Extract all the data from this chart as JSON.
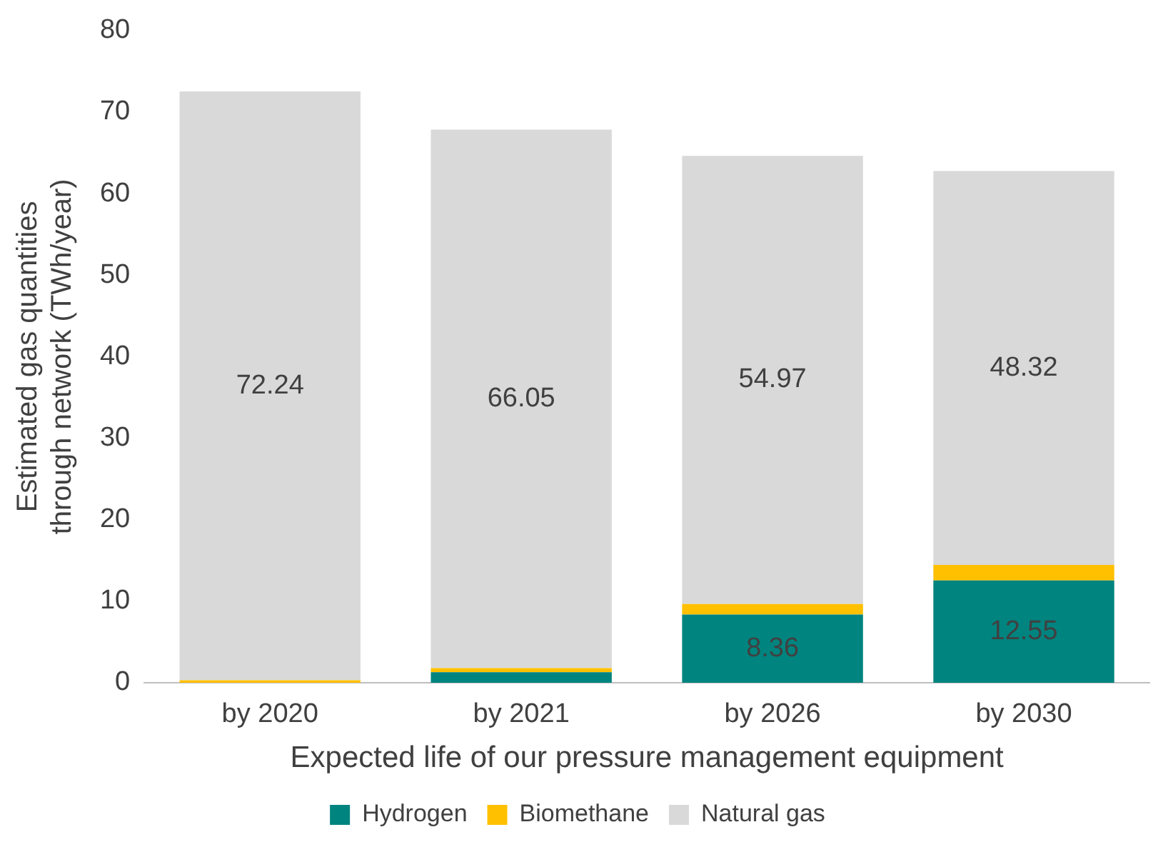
{
  "chart_data": {
    "type": "bar",
    "stacked": true,
    "xlabel": "Expected life of our pressure management equipment",
    "ylabel": "Estimated gas quantities through network (TWh/year)",
    "categories": [
      "by 2020",
      "by 2021",
      "by 2026",
      "by 2030"
    ],
    "series": [
      {
        "name": "Hydrogen",
        "color": "#00847f",
        "values": [
          0,
          1.3,
          8.36,
          12.55
        ],
        "value_labels": [
          null,
          null,
          "8.36",
          "12.55"
        ]
      },
      {
        "name": "Biomethane",
        "color": "#ffc000",
        "values": [
          0.3,
          0.5,
          1.3,
          1.9
        ],
        "value_labels": [
          null,
          null,
          null,
          null
        ]
      },
      {
        "name": "Natural gas",
        "color": "#d9d9d9",
        "values": [
          72.24,
          66.05,
          54.97,
          48.32
        ],
        "value_labels": [
          "72.24",
          "66.05",
          "54.97",
          "48.32"
        ]
      }
    ],
    "ylim": [
      0,
      80
    ],
    "yticks": [
      0,
      10,
      20,
      30,
      40,
      50,
      60,
      70,
      80
    ],
    "grid": false,
    "legend": "bottom"
  }
}
